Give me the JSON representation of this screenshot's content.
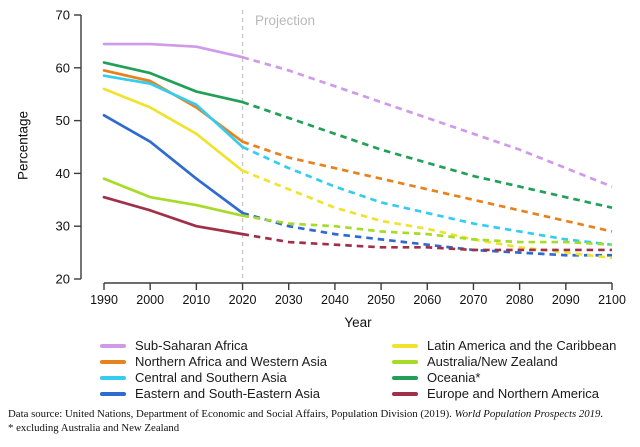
{
  "chart_data": {
    "type": "line",
    "xlabel": "Year",
    "ylabel": "Percentage",
    "x": [
      1990,
      2000,
      2010,
      2020,
      2030,
      2040,
      2050,
      2060,
      2070,
      2080,
      2090,
      2100
    ],
    "xlim": [
      1990,
      2100
    ],
    "ylim": [
      20,
      70
    ],
    "yticks": [
      20,
      30,
      40,
      50,
      60,
      70
    ],
    "grid": false,
    "legend_position": "bottom",
    "style": {
      "solid_until_year": 2020,
      "dashed_after": true
    },
    "projection": {
      "label": "Projection",
      "start_year": 2020,
      "line_color": "#c6c6c6",
      "label_color": "#b9b9b9"
    },
    "series": [
      {
        "name": "Sub-Saharan Africa",
        "color": "#cf9ae8",
        "values": [
          64.5,
          64.5,
          64.0,
          62.0,
          59.5,
          56.5,
          53.5,
          50.5,
          47.5,
          44.5,
          41.0,
          37.5
        ]
      },
      {
        "name": "Northern Africa and Western Asia",
        "color": "#e8821d",
        "values": [
          59.5,
          57.5,
          52.5,
          46.0,
          43.0,
          41.0,
          39.0,
          37.0,
          35.0,
          33.0,
          31.0,
          29.0
        ]
      },
      {
        "name": "Central and Southern Asia",
        "color": "#35cdee",
        "values": [
          58.5,
          57.0,
          53.0,
          45.0,
          41.0,
          37.5,
          34.5,
          32.5,
          30.5,
          29.0,
          27.5,
          26.5
        ]
      },
      {
        "name": "Eastern and South-Eastern Asia",
        "color": "#2f6ad1",
        "values": [
          51.0,
          46.0,
          39.0,
          32.5,
          30.0,
          28.5,
          27.5,
          26.5,
          25.5,
          25.0,
          24.5,
          24.5
        ]
      },
      {
        "name": "Latin America and the Caribbean",
        "color": "#f0e32f",
        "values": [
          56.0,
          52.5,
          47.5,
          40.5,
          37.0,
          33.5,
          31.0,
          29.5,
          27.5,
          26.0,
          25.0,
          24.0
        ]
      },
      {
        "name": "Australia/New Zealand",
        "color": "#a6db28",
        "values": [
          39.0,
          35.5,
          34.0,
          32.0,
          30.5,
          30.0,
          29.0,
          28.5,
          27.5,
          27.0,
          27.0,
          26.5
        ]
      },
      {
        "name": "Oceania*",
        "color": "#21a057",
        "values": [
          61.0,
          59.0,
          55.5,
          53.5,
          50.5,
          47.5,
          44.5,
          42.0,
          39.5,
          37.5,
          35.5,
          33.5
        ]
      },
      {
        "name": "Europe and Northern America",
        "color": "#a03048",
        "values": [
          35.5,
          33.0,
          30.0,
          28.5,
          27.0,
          26.5,
          26.0,
          26.0,
          25.5,
          25.5,
          25.5,
          25.5
        ]
      }
    ]
  },
  "axis": {
    "y_label": "Percentage",
    "x_label": "Year"
  },
  "projection_label": "Projection",
  "footer": {
    "line1_normal": "Data source: United Nations, Department of Economic and Social Affairs, Population Division (2019). ",
    "line1_italic": "World Population Prospects 2019.",
    "line2": "* excluding Australia and New Zealand"
  }
}
